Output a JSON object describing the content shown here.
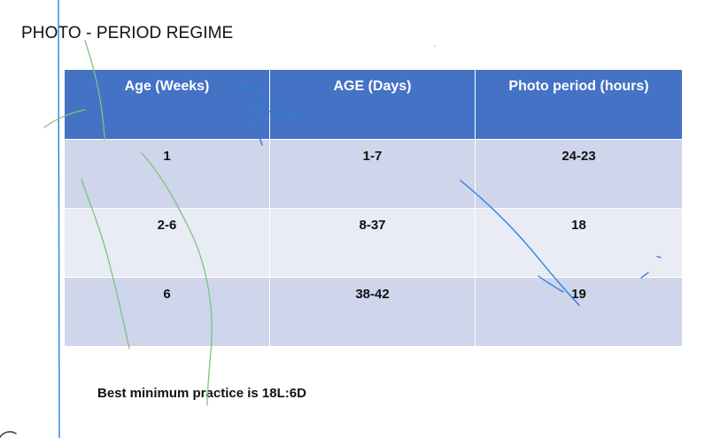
{
  "slide": {
    "title": "PHOTO - PERIOD REGIME",
    "footnote": "Best minimum practice is 18L:6D"
  },
  "table": {
    "headers": [
      "Age (Weeks)",
      "AGE (Days)",
      "Photo period (hours)"
    ],
    "rows": [
      [
        "1",
        "1-7",
        "24-23"
      ],
      [
        "2-6",
        "8-37",
        "18"
      ],
      [
        "6",
        "38-42",
        "19"
      ]
    ]
  },
  "colors": {
    "header_fill": "#4472c4",
    "row_band_dark": "#cfd5ea",
    "row_band_light": "#e9ebf5",
    "pen_green": "#7cc47c",
    "pen_blue": "#2a7fe0"
  }
}
